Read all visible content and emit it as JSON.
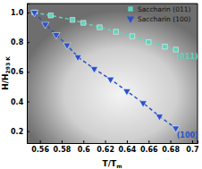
{
  "chart_data": {
    "type": "scatter",
    "x_label": "T/T",
    "x_label_sub": "m",
    "y_label": "H/H",
    "y_label_sub": "293 K",
    "xlim": [
      0.548,
      0.705
    ],
    "ylim": [
      0.12,
      1.06
    ],
    "xticks": [
      0.56,
      0.58,
      0.6,
      0.62,
      0.64,
      0.66,
      0.68,
      0.7
    ],
    "yticks": [
      0.2,
      0.4,
      0.6,
      0.8,
      {
        "value": 1.0,
        "label": "1.0"
      }
    ],
    "legend": "top-right",
    "annotations": [
      "(011)",
      "(100)"
    ],
    "series": [
      {
        "name": "Saccharin (011)",
        "color": "#5fd3bd",
        "marker": "square",
        "line_style": "dashed",
        "x": [
          0.555,
          0.57,
          0.59,
          0.6,
          0.615,
          0.63,
          0.645,
          0.66,
          0.675,
          0.685
        ],
        "values": [
          1.0,
          0.98,
          0.95,
          0.93,
          0.9,
          0.87,
          0.84,
          0.8,
          0.77,
          0.75
        ]
      },
      {
        "name": "Saccharin (100)",
        "color": "#2a52c9",
        "marker": "triangle-down",
        "line_style": "dashed",
        "x": [
          0.555,
          0.565,
          0.575,
          0.585,
          0.595,
          0.61,
          0.625,
          0.64,
          0.655,
          0.67,
          0.685
        ],
        "values": [
          1.0,
          0.92,
          0.85,
          0.78,
          0.7,
          0.62,
          0.55,
          0.47,
          0.39,
          0.3,
          0.22
        ]
      }
    ]
  }
}
